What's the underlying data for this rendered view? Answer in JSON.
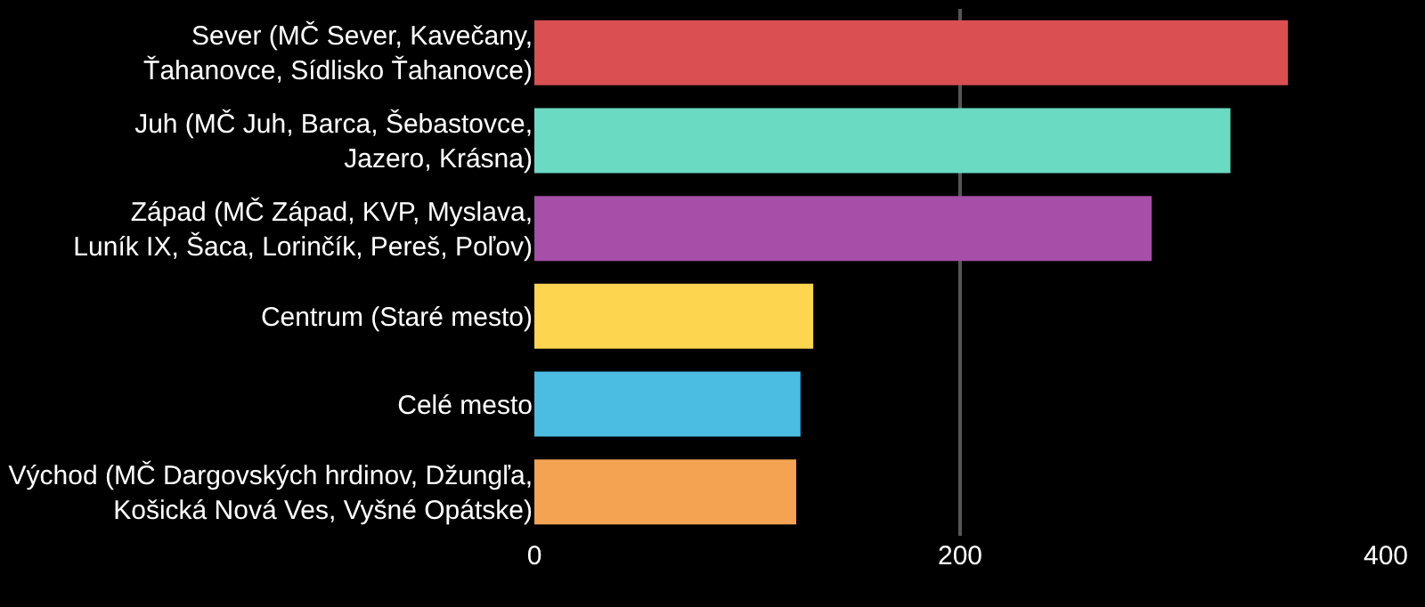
{
  "chart_data": {
    "type": "bar",
    "orientation": "horizontal",
    "categories": [
      "Sever (MČ Sever, Kavečany,\nŤahanovce, Sídlisko Ťahanovce)",
      "Juh (MČ Juh, Barca, Šebastovce,\nJazero, Krásna)",
      "Západ (MČ Západ, KVP, Myslava,\nLuník IX, Šaca, Lorinčík, Pereš, Poľov)",
      "Centrum (Staré mesto)",
      "Celé mesto",
      "Východ (MČ Dargovských hrdinov, Džungľa,\nKošická Nová Ves, Vyšné Opátske)"
    ],
    "values": [
      354,
      327,
      290,
      131,
      125,
      123
    ],
    "colors": [
      "#d94f52",
      "#6bdac3",
      "#a64ea8",
      "#fdd54f",
      "#4bbde3",
      "#f4a352"
    ],
    "xlim": [
      0,
      400
    ],
    "xticks": [
      0,
      200,
      400
    ],
    "grid": "x",
    "legend": false
  }
}
